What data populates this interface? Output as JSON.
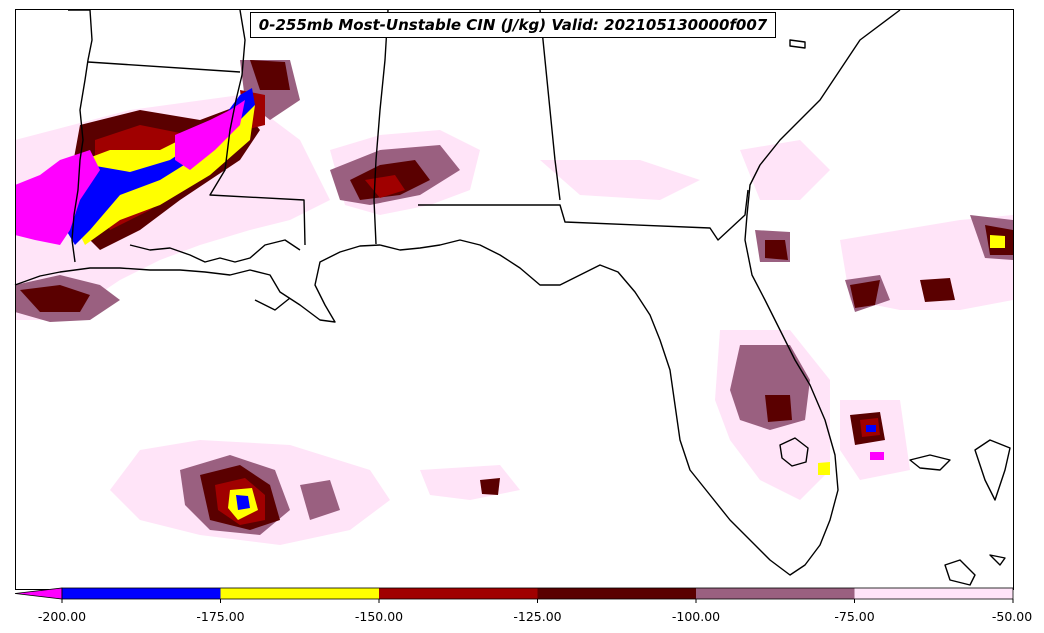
{
  "title": "0-255mb Most-Unstable CIN (J/kg) Valid: 202105130000f007",
  "colorbar": {
    "extend": "min",
    "bins": [
      {
        "from": -200,
        "to": -175,
        "color": "#0000ff"
      },
      {
        "from": -175,
        "to": -150,
        "color": "#ffff00"
      },
      {
        "from": -150,
        "to": -125,
        "color": "#a00000"
      },
      {
        "from": -125,
        "to": -100,
        "color": "#5a0000"
      },
      {
        "from": -100,
        "to": -75,
        "color": "#9a6080"
      },
      {
        "from": -75,
        "to": -50,
        "color": "#ffe4f8"
      }
    ],
    "under_color": "#ff00ff",
    "ticks": [
      "-200.00",
      "-175.00",
      "-150.00",
      "-125.00",
      "-100.00",
      "-75.00",
      "-50.00"
    ]
  },
  "colors": {
    "background": "#ffffff",
    "outline": "#000000"
  }
}
